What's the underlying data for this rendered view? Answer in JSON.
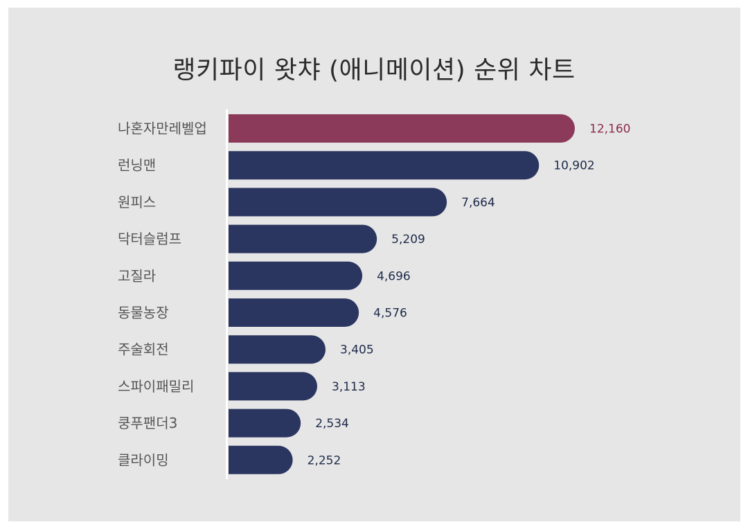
{
  "chart_data": {
    "type": "bar",
    "orientation": "horizontal",
    "title": "랭키파이 왓챠 (애니메이션) 순위 차트",
    "categories": [
      "나혼자만레벨업",
      "런닝맨",
      "원피스",
      "닥터슬럼프",
      "고질라",
      "동물농장",
      "주술회전",
      "스파이패밀리",
      "쿵푸팬더3",
      "클라이밍"
    ],
    "values": [
      12160,
      10902,
      7664,
      5209,
      4696,
      4576,
      3405,
      3113,
      2534,
      2252
    ],
    "value_labels": [
      "12,160",
      "10,902",
      "7,664",
      "5,209",
      "4,696",
      "4,576",
      "3,405",
      "3,113",
      "2,534",
      "2,252"
    ],
    "highlight_index": 0,
    "colors": {
      "highlight": "#8b3a59",
      "bar": "#2b3660",
      "highlight_text": "#8b2c4a",
      "value_text": "#1e2a4a",
      "background": "#e6e6e6"
    },
    "grid": false,
    "legend": "none"
  }
}
